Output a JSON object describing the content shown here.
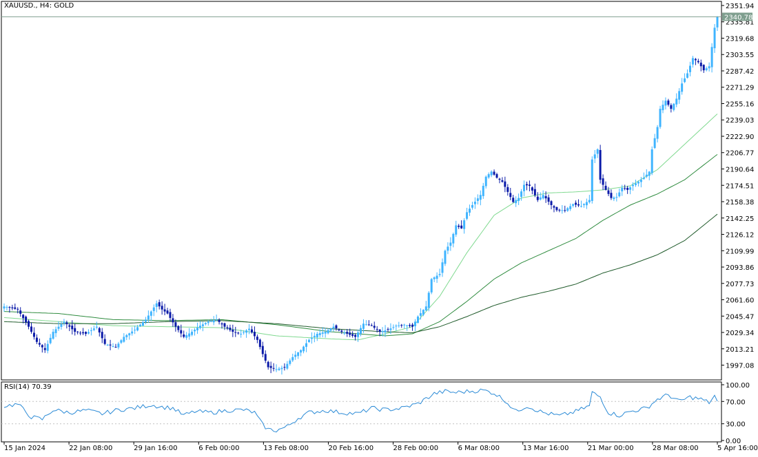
{
  "header": {
    "title": "XAUUSD., H4:  GOLD"
  },
  "rsi_header": {
    "title": "RSI(14) 70.39"
  },
  "colors": {
    "background": "#ffffff",
    "frame": "#000000",
    "bull_candle": "#3fb4ff",
    "bear_candle": "#0a1aa8",
    "ma_fast": "#7fd98f",
    "ma_mid": "#2e8b3e",
    "ma_slow": "#1f5a2a",
    "rsi_line": "#2a8ad6",
    "price_line": "#7f9f8f",
    "price_label_bg": "#7f9f8f",
    "price_label_text": "#ffffff"
  },
  "chart_data": [
    {
      "type": "candlestick",
      "title": "XAUUSD., H4:  GOLD",
      "ylim": [
        1982.5,
        2356.0
      ],
      "y_ticks": [
        "2351.94",
        "2335.81",
        "2319.68",
        "2303.55",
        "2287.42",
        "2271.29",
        "2255.16",
        "2239.03",
        "2222.90",
        "2206.77",
        "2190.64",
        "2174.51",
        "2158.38",
        "2142.25",
        "2126.12",
        "2109.99",
        "2093.86",
        "2077.73",
        "2061.60",
        "2045.47",
        "2029.34",
        "2013.21",
        "1997.08"
      ],
      "current_price": "2340.78",
      "x_ticks": [
        "15 Jan 2024",
        "22 Jan 08:00",
        "29 Jan 16:00",
        "6 Feb 00:00",
        "13 Feb 08:00",
        "20 Feb 16:00",
        "28 Feb 00:00",
        "6 Mar 08:00",
        "13 Mar 16:00",
        "21 Mar 00:00",
        "28 Mar 08:00",
        "5 Apr 16:00"
      ],
      "close_anchors": [
        [
          0,
          2055
        ],
        [
          5,
          2052
        ],
        [
          9,
          2035
        ],
        [
          12,
          2020
        ],
        [
          15,
          2012
        ],
        [
          18,
          2030
        ],
        [
          22,
          2040
        ],
        [
          26,
          2030
        ],
        [
          30,
          2028
        ],
        [
          34,
          2035
        ],
        [
          37,
          2018
        ],
        [
          41,
          2015
        ],
        [
          44,
          2025
        ],
        [
          48,
          2032
        ],
        [
          52,
          2042
        ],
        [
          56,
          2058
        ],
        [
          58,
          2052
        ],
        [
          60,
          2048
        ],
        [
          63,
          2035
        ],
        [
          66,
          2025
        ],
        [
          69,
          2030
        ],
        [
          72,
          2036
        ],
        [
          75,
          2040
        ],
        [
          78,
          2042
        ],
        [
          81,
          2035
        ],
        [
          84,
          2030
        ],
        [
          87,
          2028
        ],
        [
          90,
          2033
        ],
        [
          93,
          2022
        ],
        [
          95,
          2008
        ],
        [
          97,
          1995
        ],
        [
          100,
          1993
        ],
        [
          103,
          1995
        ],
        [
          106,
          2005
        ],
        [
          109,
          2012
        ],
        [
          112,
          2022
        ],
        [
          115,
          2028
        ],
        [
          118,
          2030
        ],
        [
          121,
          2035
        ],
        [
          124,
          2030
        ],
        [
          127,
          2027
        ],
        [
          129,
          2025
        ],
        [
          132,
          2038
        ],
        [
          135,
          2036
        ],
        [
          138,
          2030
        ],
        [
          141,
          2032
        ],
        [
          144,
          2036
        ],
        [
          147,
          2037
        ],
        [
          150,
          2035
        ],
        [
          152,
          2045
        ],
        [
          155,
          2055
        ],
        [
          157,
          2082
        ],
        [
          160,
          2087
        ],
        [
          162,
          2110
        ],
        [
          164,
          2118
        ],
        [
          166,
          2135
        ],
        [
          168,
          2132
        ],
        [
          170,
          2148
        ],
        [
          172,
          2155
        ],
        [
          175,
          2165
        ],
        [
          177,
          2183
        ],
        [
          179,
          2188
        ],
        [
          181,
          2182
        ],
        [
          183,
          2178
        ],
        [
          185,
          2168
        ],
        [
          187,
          2158
        ],
        [
          189,
          2162
        ],
        [
          191,
          2175
        ],
        [
          193,
          2174
        ],
        [
          196,
          2160
        ],
        [
          198,
          2165
        ],
        [
          201,
          2155
        ],
        [
          203,
          2150
        ],
        [
          206,
          2150
        ],
        [
          209,
          2156
        ],
        [
          212,
          2154
        ],
        [
          215,
          2160
        ],
        [
          216,
          2200
        ],
        [
          218,
          2210
        ],
        [
          219,
          2180
        ],
        [
          221,
          2170
        ],
        [
          223,
          2162
        ],
        [
          225,
          2163
        ],
        [
          227,
          2172
        ],
        [
          229,
          2170
        ],
        [
          231,
          2175
        ],
        [
          233,
          2178
        ],
        [
          235,
          2182
        ],
        [
          237,
          2188
        ],
        [
          238,
          2210
        ],
        [
          240,
          2232
        ],
        [
          241,
          2250
        ],
        [
          243,
          2258
        ],
        [
          245,
          2250
        ],
        [
          247,
          2260
        ],
        [
          249,
          2275
        ],
        [
          251,
          2285
        ],
        [
          253,
          2300
        ],
        [
          255,
          2296
        ],
        [
          257,
          2288
        ],
        [
          259,
          2292
        ],
        [
          261,
          2330
        ],
        [
          262,
          2340.78
        ]
      ],
      "ma_fast_anchors": [
        [
          0,
          2044
        ],
        [
          40,
          2036
        ],
        [
          80,
          2034
        ],
        [
          100,
          2026
        ],
        [
          120,
          2023
        ],
        [
          130,
          2022
        ],
        [
          140,
          2028
        ],
        [
          150,
          2035
        ],
        [
          160,
          2065
        ],
        [
          170,
          2108
        ],
        [
          180,
          2145
        ],
        [
          190,
          2162
        ],
        [
          200,
          2167
        ],
        [
          210,
          2168
        ],
        [
          220,
          2170
        ],
        [
          230,
          2174
        ],
        [
          240,
          2190
        ],
        [
          250,
          2215
        ],
        [
          262,
          2245
        ]
      ],
      "ma_mid_anchors": [
        [
          0,
          2050
        ],
        [
          20,
          2048
        ],
        [
          40,
          2042
        ],
        [
          60,
          2041
        ],
        [
          80,
          2042
        ],
        [
          100,
          2037
        ],
        [
          120,
          2030
        ],
        [
          140,
          2026
        ],
        [
          150,
          2028
        ],
        [
          160,
          2040
        ],
        [
          170,
          2060
        ],
        [
          180,
          2082
        ],
        [
          190,
          2098
        ],
        [
          200,
          2110
        ],
        [
          210,
          2122
        ],
        [
          220,
          2140
        ],
        [
          230,
          2155
        ],
        [
          240,
          2166
        ],
        [
          250,
          2180
        ],
        [
          262,
          2205
        ]
      ],
      "ma_slow_anchors": [
        [
          0,
          2040
        ],
        [
          20,
          2038
        ],
        [
          40,
          2038
        ],
        [
          60,
          2040
        ],
        [
          80,
          2041
        ],
        [
          100,
          2038
        ],
        [
          120,
          2033
        ],
        [
          140,
          2030
        ],
        [
          150,
          2029
        ],
        [
          160,
          2035
        ],
        [
          170,
          2045
        ],
        [
          180,
          2056
        ],
        [
          190,
          2064
        ],
        [
          200,
          2070
        ],
        [
          210,
          2077
        ],
        [
          220,
          2088
        ],
        [
          230,
          2096
        ],
        [
          240,
          2106
        ],
        [
          250,
          2120
        ],
        [
          262,
          2146
        ]
      ],
      "candle_count": 263
    },
    {
      "type": "line",
      "title": "RSI(14) 70.39",
      "ylim": [
        0,
        100
      ],
      "y_ticks": [
        "100.00",
        "70.00",
        "30.00",
        "0.00"
      ],
      "levels": [
        70,
        30
      ],
      "rsi_anchors": [
        [
          0,
          62
        ],
        [
          5,
          65
        ],
        [
          10,
          42
        ],
        [
          14,
          38
        ],
        [
          18,
          55
        ],
        [
          24,
          50
        ],
        [
          30,
          54
        ],
        [
          36,
          48
        ],
        [
          42,
          55
        ],
        [
          48,
          58
        ],
        [
          54,
          64
        ],
        [
          58,
          60
        ],
        [
          62,
          58
        ],
        [
          66,
          45
        ],
        [
          70,
          52
        ],
        [
          76,
          50
        ],
        [
          82,
          54
        ],
        [
          88,
          55
        ],
        [
          92,
          50
        ],
        [
          95,
          28
        ],
        [
          97,
          20
        ],
        [
          100,
          18
        ],
        [
          104,
          25
        ],
        [
          108,
          40
        ],
        [
          112,
          50
        ],
        [
          118,
          54
        ],
        [
          124,
          50
        ],
        [
          130,
          48
        ],
        [
          135,
          58
        ],
        [
          140,
          55
        ],
        [
          146,
          58
        ],
        [
          152,
          66
        ],
        [
          155,
          75
        ],
        [
          158,
          84
        ],
        [
          162,
          88
        ],
        [
          166,
          86
        ],
        [
          170,
          88
        ],
        [
          176,
          90
        ],
        [
          180,
          85
        ],
        [
          184,
          72
        ],
        [
          188,
          52
        ],
        [
          192,
          62
        ],
        [
          198,
          50
        ],
        [
          204,
          44
        ],
        [
          210,
          52
        ],
        [
          215,
          62
        ],
        [
          216,
          86
        ],
        [
          219,
          78
        ],
        [
          222,
          50
        ],
        [
          226,
          45
        ],
        [
          230,
          52
        ],
        [
          236,
          58
        ],
        [
          240,
          74
        ],
        [
          244,
          82
        ],
        [
          248,
          70
        ],
        [
          252,
          78
        ],
        [
          256,
          74
        ],
        [
          259,
          68
        ],
        [
          261,
          80
        ],
        [
          262,
          70.39
        ]
      ]
    }
  ]
}
